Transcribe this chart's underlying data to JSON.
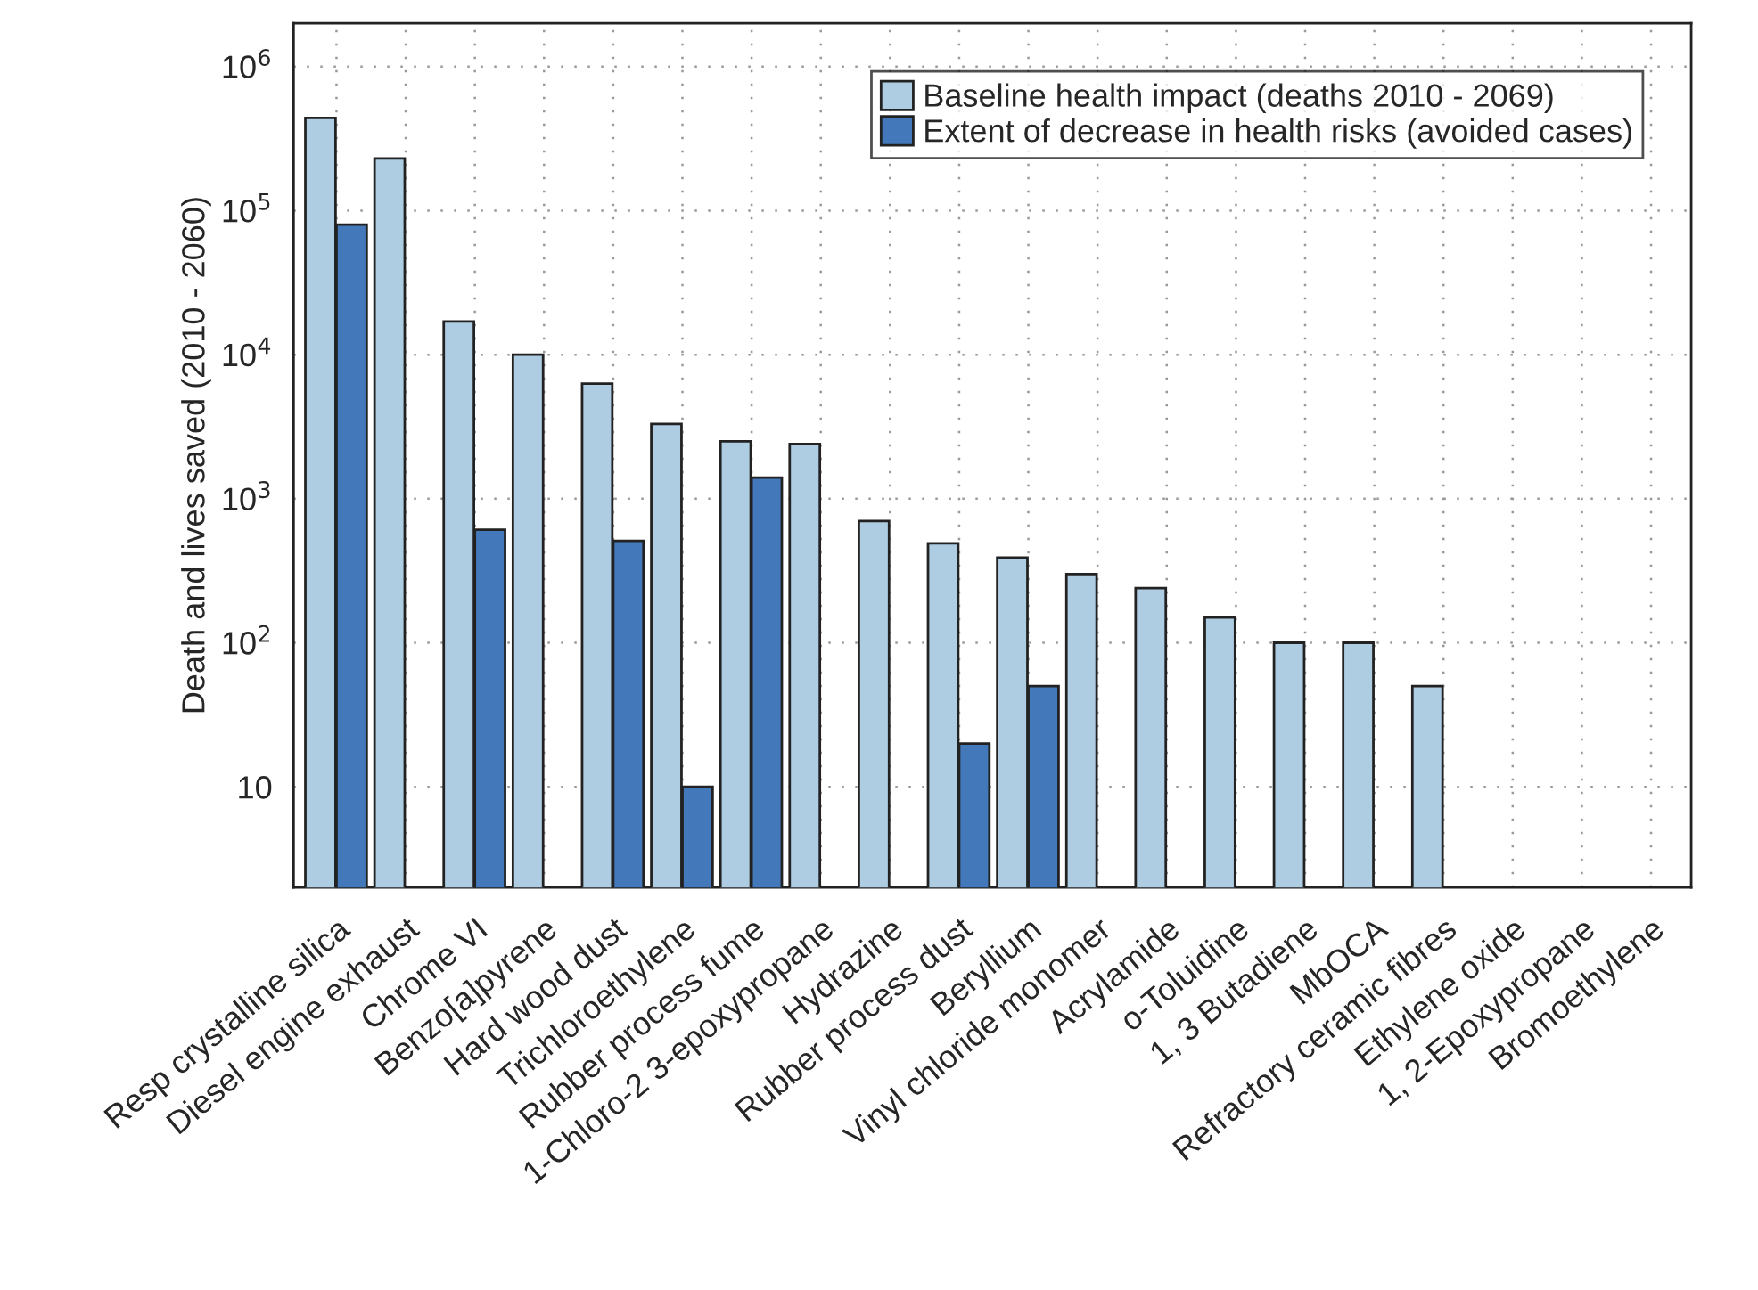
{
  "chart_data": {
    "type": "bar",
    "ylabel": "Death and lives saved (2010 - 2060)",
    "categories": [
      "Resp crystalline silica",
      "Diesel engine exhaust",
      "Chrome VI",
      "Benzo[a]pyrene",
      "Hard wood dust",
      "Trichloroethylene",
      "Rubber process fume",
      "1-Chloro-2 3-epoxypropane",
      "Hydrazine",
      "Rubber process dust",
      "Beryllium",
      "Vinyl chloride monomer",
      "Acrylamide",
      "o-Toluidine",
      "1, 3 Butadiene",
      "MbOCA",
      "Refractory ceramic fibres",
      "Ethylene oxide",
      "1, 2-Epoxypropane",
      "Bromoethylene"
    ],
    "series": [
      {
        "name": "Baseline health impact (deaths 2010 - 2069)",
        "color": "#aecde3",
        "values": [
          440000,
          230000,
          17000,
          10000,
          6300,
          3300,
          2500,
          2400,
          700,
          490,
          390,
          300,
          240,
          150,
          100,
          100,
          50,
          null,
          null,
          null
        ]
      },
      {
        "name": "Extent of decrease in health risks (avoided cases)",
        "color": "#4379bb",
        "values": [
          80000,
          null,
          610,
          null,
          510,
          10,
          1400,
          null,
          null,
          20,
          50,
          null,
          null,
          null,
          null,
          null,
          null,
          null,
          null,
          null
        ]
      }
    ],
    "log": true,
    "ylim": [
      2,
      2000000
    ],
    "yticks": [
      10,
      {
        "value": 100,
        "label": "10$^{2}$"
      },
      {
        "value": 1000,
        "label": "10$^{3}$"
      },
      {
        "value": 10000,
        "label": "10$^{4}$"
      },
      {
        "value": 100000,
        "label": "10$^{5}$"
      },
      {
        "value": 1000000,
        "label": "10$^{6}$"
      }
    ],
    "grid": true,
    "legend": "top right"
  }
}
